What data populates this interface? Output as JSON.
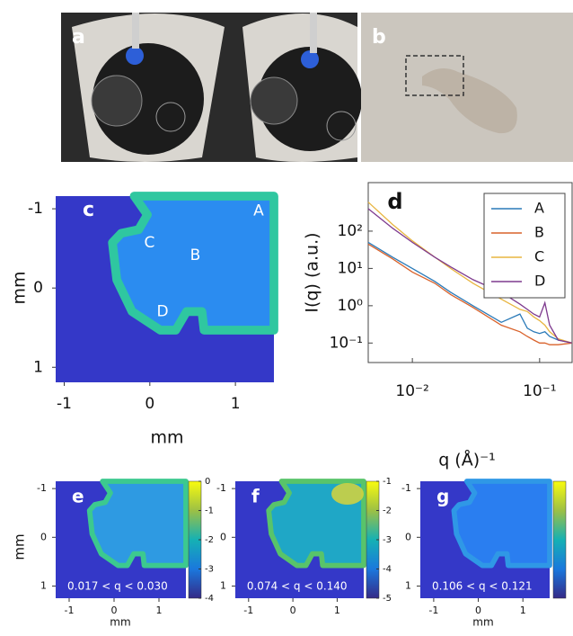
{
  "photos": [
    {
      "label": "a"
    },
    {
      "label": "b"
    }
  ],
  "chart_data": [
    {
      "type": "heatmap",
      "panel_label": "c",
      "xlabel": "mm",
      "ylabel": "mm",
      "xlim": [
        -1.1,
        1.45
      ],
      "ylim": [
        -1.16,
        1.19
      ],
      "y_reversed": true,
      "xticks": [
        -1,
        0,
        1
      ],
      "yticks": [
        -1,
        0,
        1
      ],
      "annotations": [
        "A",
        "B",
        "C",
        "D"
      ],
      "colorbar": false
    },
    {
      "type": "line",
      "panel_label": "d",
      "xlabel": "q (Å)⁻¹",
      "ylabel": "I(q) (a.u.)",
      "xscale": "log",
      "yscale": "log",
      "xlim": [
        0.0045,
        0.18
      ],
      "ylim": [
        0.03,
        2000
      ],
      "xticks": [
        {
          "value": 0.01,
          "label": "10⁻²"
        },
        {
          "value": 0.1,
          "label": "10⁻¹"
        }
      ],
      "yticks": [
        {
          "value": 0.1,
          "label": "10⁻¹"
        },
        {
          "value": 1,
          "label": "10⁰"
        },
        {
          "value": 10,
          "label": "10¹"
        },
        {
          "value": 100,
          "label": "10²"
        }
      ],
      "legend": "upper right",
      "x": [
        0.0045,
        0.007,
        0.01,
        0.015,
        0.02,
        0.03,
        0.05,
        0.07,
        0.08,
        0.09,
        0.1,
        0.11,
        0.12,
        0.14,
        0.18
      ],
      "series": [
        {
          "name": "A",
          "color": "#2a7ab8",
          "values": [
            50,
            20,
            10,
            4.5,
            2.3,
            1,
            0.36,
            0.6,
            0.25,
            0.2,
            0.18,
            0.2,
            0.15,
            0.12,
            0.1
          ]
        },
        {
          "name": "B",
          "color": "#d9622b",
          "values": [
            45,
            18,
            8,
            4,
            2,
            0.9,
            0.3,
            0.2,
            0.15,
            0.12,
            0.1,
            0.1,
            0.09,
            0.09,
            0.1
          ]
        },
        {
          "name": "C",
          "color": "#e8b540",
          "values": [
            600,
            150,
            55,
            20,
            10,
            4,
            1.5,
            0.8,
            0.7,
            0.5,
            0.4,
            0.3,
            0.2,
            0.13,
            0.1
          ]
        },
        {
          "name": "D",
          "color": "#7e3a8e",
          "values": [
            400,
            120,
            50,
            20,
            11,
            5,
            2.3,
            1.1,
            0.8,
            0.6,
            0.5,
            1.2,
            0.3,
            0.12,
            0.1
          ]
        }
      ]
    },
    {
      "type": "heatmap",
      "panel_label": "e",
      "xlabel": "mm",
      "ylabel": "mm",
      "xlim": [
        -1.3,
        1.6
      ],
      "ylim": [
        -1.15,
        1.25
      ],
      "y_reversed": true,
      "xticks": [
        -1,
        0,
        1
      ],
      "yticks": [
        -1,
        0,
        1
      ],
      "annotations": [
        "0.017 < q < 0.030"
      ],
      "colorbar": true,
      "clim": [
        -4,
        0
      ],
      "cticks": [
        0,
        -1,
        -2,
        -3,
        -4
      ]
    },
    {
      "type": "heatmap",
      "panel_label": "f",
      "xlim": [
        -1.3,
        1.6
      ],
      "ylim": [
        -1.15,
        1.25
      ],
      "y_reversed": true,
      "xticks": [
        -1,
        0,
        1
      ],
      "yticks": [
        -1,
        0,
        1
      ],
      "annotations": [
        "0.074 < q < 0.140"
      ],
      "colorbar": true,
      "clim": [
        -5,
        -1
      ],
      "cticks": [
        -1,
        -2,
        -3,
        -4,
        -5
      ]
    },
    {
      "type": "heatmap",
      "panel_label": "g",
      "xlabel": "mm",
      "xlim": [
        -1.3,
        1.6
      ],
      "ylim": [
        -1.15,
        1.25
      ],
      "y_reversed": true,
      "xticks": [
        -1,
        0,
        1
      ],
      "yticks": [
        -1,
        0,
        1
      ],
      "annotations": [
        "0.106 < q < 0.121"
      ],
      "colorbar": true
    }
  ]
}
